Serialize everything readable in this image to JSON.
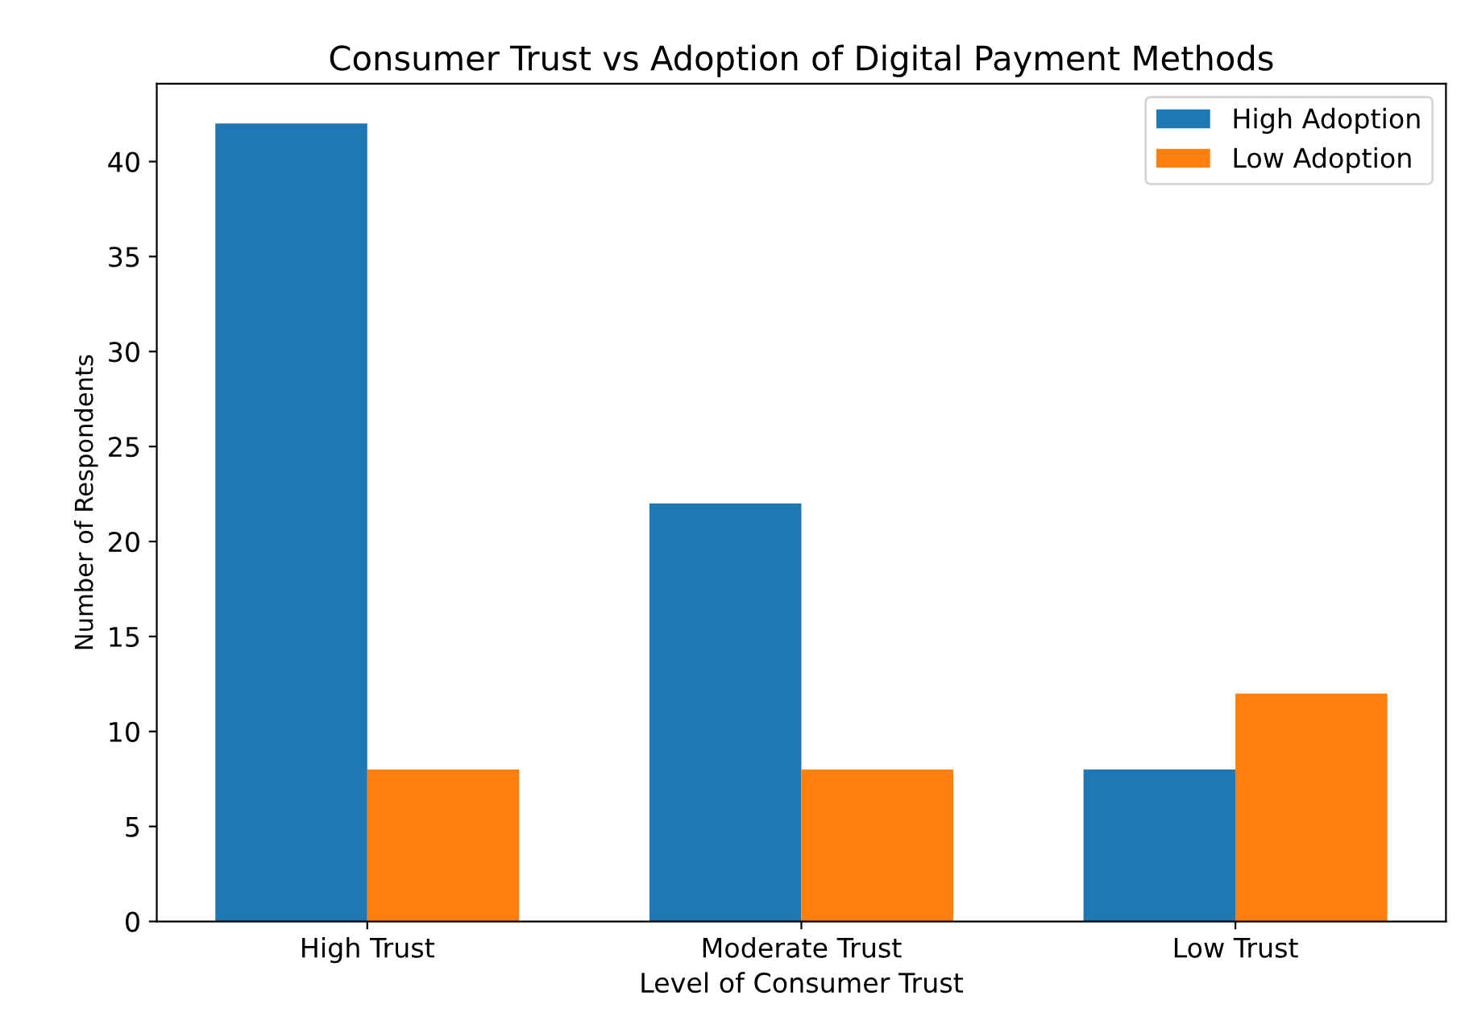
{
  "chart_data": {
    "type": "bar",
    "title": "Consumer Trust vs Adoption of Digital Payment Methods",
    "xlabel": "Level of Consumer Trust",
    "ylabel": "Number of Respondents",
    "categories": [
      "High Trust",
      "Moderate Trust",
      "Low Trust"
    ],
    "series": [
      {
        "name": "High Adoption",
        "color": "#1f77b4",
        "values": [
          42,
          22,
          8
        ]
      },
      {
        "name": "Low Adoption",
        "color": "#ff7f0e",
        "values": [
          8,
          8,
          12
        ]
      }
    ],
    "ylim": [
      0,
      44.1
    ],
    "yticks": [
      0,
      5,
      10,
      15,
      20,
      25,
      30,
      35,
      40
    ],
    "grid": false,
    "legend": "top right"
  }
}
